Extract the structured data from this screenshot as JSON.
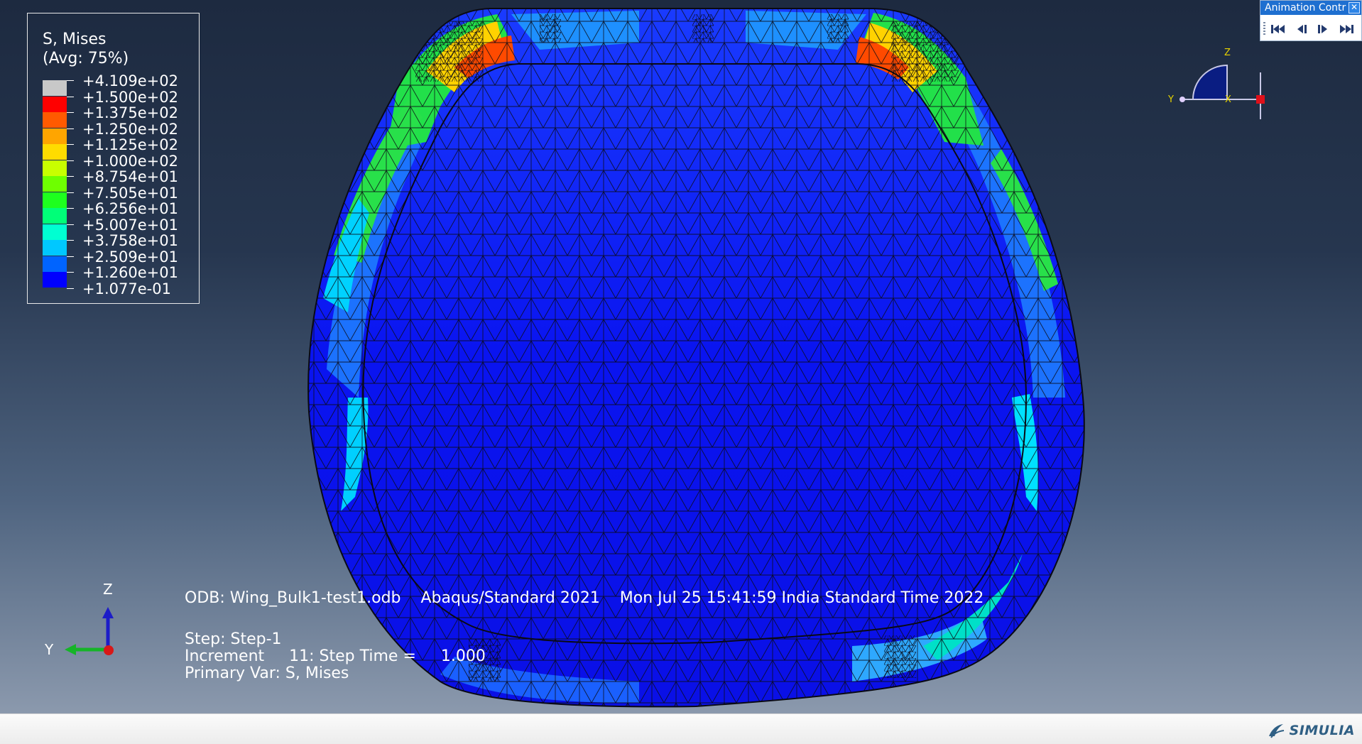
{
  "legend": {
    "title": "S, Mises",
    "subtitle": "(Avg: 75%)",
    "entries": [
      {
        "label": "+4.109e+02",
        "color": "#c8c8c8"
      },
      {
        "label": "+1.500e+02",
        "color": "#ff0000"
      },
      {
        "label": "+1.375e+02",
        "color": "#ff5a00"
      },
      {
        "label": "+1.250e+02",
        "color": "#ffa500"
      },
      {
        "label": "+1.125e+02",
        "color": "#ffdc00"
      },
      {
        "label": "+1.000e+02",
        "color": "#c8ff00"
      },
      {
        "label": "+8.754e+01",
        "color": "#6eff00"
      },
      {
        "label": "+7.505e+01",
        "color": "#1eff1e"
      },
      {
        "label": "+6.256e+01",
        "color": "#00ff78"
      },
      {
        "label": "+5.007e+01",
        "color": "#00ffd2"
      },
      {
        "label": "+3.758e+01",
        "color": "#00c8ff"
      },
      {
        "label": "+2.509e+01",
        "color": "#0064ff"
      },
      {
        "label": "+1.260e+01",
        "color": "#0000ff"
      },
      {
        "label": "+1.077e-01",
        "color": ""
      }
    ]
  },
  "info": {
    "odb_line": "ODB: Wing_Bulk1-test1.odb    Abaqus/Standard 2021    Mon Jul 25 15:41:59 India Standard Time 2022",
    "step_line": "Step: Step-1",
    "increment_line": "Increment     11: Step Time =     1.000",
    "primary_var_line": "Primary Var: S, Mises"
  },
  "triad": {
    "z": "Z",
    "y": "Y"
  },
  "view_cube": {
    "z": "Z",
    "y": "Y",
    "x": "X"
  },
  "animation_control": {
    "title": "Animation Contr",
    "close_glyph": "✕",
    "buttons": [
      "first-frame-icon",
      "previous-frame-icon",
      "next-frame-icon",
      "last-frame-icon"
    ]
  },
  "brand": {
    "name": "SIMULIA",
    "color": "#2f5f84"
  },
  "colors": {
    "background_top": "#1d2a40",
    "background_bottom": "#8b99ad",
    "mesh_line": "#0a0a14"
  }
}
